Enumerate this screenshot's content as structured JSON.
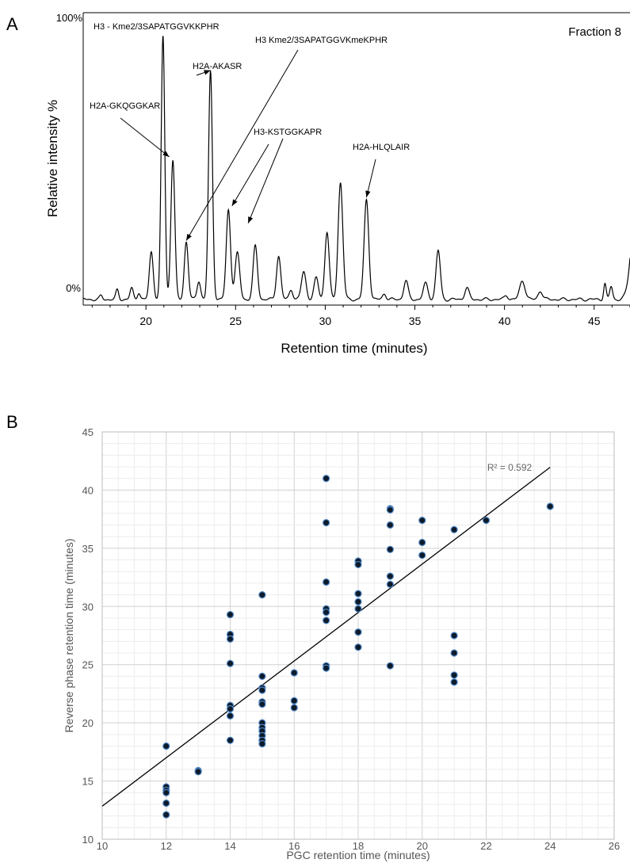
{
  "panel_a": {
    "letter": "A",
    "top_label": "100%",
    "bottom_label": "0%",
    "fraction_label": "Fraction 8",
    "xlabel": "Retention time (minutes)",
    "ylabel": "Relative intensity %"
  },
  "panel_b": {
    "letter": "B",
    "r2_label": "R² = 0.592"
  },
  "chart_data": [
    {
      "type": "line",
      "xlabel": "Retention time (minutes)",
      "ylabel": "Relative intensity %",
      "xlim": [
        16.5,
        47
      ],
      "ylim": [
        0,
        100
      ],
      "x_ticks": [
        20,
        25,
        30,
        35,
        40,
        45
      ],
      "peaks": [
        {
          "x": 17.5,
          "y": 1.2,
          "w": 0.08
        },
        {
          "x": 18.4,
          "y": 3.2,
          "w": 0.08
        },
        {
          "x": 19.2,
          "y": 3.8,
          "w": 0.09
        },
        {
          "x": 19.6,
          "y": 2.5,
          "w": 0.08
        },
        {
          "x": 20.3,
          "y": 16.5,
          "w": 0.11
        },
        {
          "x": 20.95,
          "y": 91.5,
          "w": 0.1
        },
        {
          "x": 21.5,
          "y": 48.5,
          "w": 0.11
        },
        {
          "x": 22.25,
          "y": 20,
          "w": 0.11
        },
        {
          "x": 22.95,
          "y": 6.5,
          "w": 0.1
        },
        {
          "x": 23.6,
          "y": 79,
          "w": 0.11
        },
        {
          "x": 24.6,
          "y": 31,
          "w": 0.12
        },
        {
          "x": 25.1,
          "y": 16,
          "w": 0.13
        },
        {
          "x": 26.1,
          "y": 18.5,
          "w": 0.12
        },
        {
          "x": 27.4,
          "y": 15,
          "w": 0.12
        },
        {
          "x": 28.1,
          "y": 3.5,
          "w": 0.1
        },
        {
          "x": 28.8,
          "y": 9.5,
          "w": 0.13
        },
        {
          "x": 29.5,
          "y": 7.5,
          "w": 0.12
        },
        {
          "x": 30.1,
          "y": 23.5,
          "w": 0.12
        },
        {
          "x": 30.85,
          "y": 40.5,
          "w": 0.13
        },
        {
          "x": 32.3,
          "y": 34.5,
          "w": 0.13
        },
        {
          "x": 33.3,
          "y": 2,
          "w": 0.1
        },
        {
          "x": 34.5,
          "y": 6.5,
          "w": 0.12
        },
        {
          "x": 35.6,
          "y": 5.5,
          "w": 0.13
        },
        {
          "x": 36.3,
          "y": 17,
          "w": 0.12
        },
        {
          "x": 37.9,
          "y": 4,
          "w": 0.12
        },
        {
          "x": 40.1,
          "y": 1.5,
          "w": 0.1
        },
        {
          "x": 41.0,
          "y": 6.5,
          "w": 0.15
        },
        {
          "x": 42.0,
          "y": 3,
          "w": 0.12
        },
        {
          "x": 45.6,
          "y": 5.5,
          "w": 0.07
        },
        {
          "x": 45.95,
          "y": 4.5,
          "w": 0.08
        },
        {
          "x": 47.3,
          "y": 30,
          "w": 0.25
        }
      ],
      "annotations": [
        {
          "text": "H3 - Kme2/3SAPATGGVKKPHR",
          "target_x": 22.25,
          "target_y": 21
        },
        {
          "text": "H3 Kme2/3SAPATGGVKmeKPHR",
          "target_x": 22.25,
          "target_y": 21
        },
        {
          "text": "H2A-AKASR",
          "target_x": 23.6,
          "target_y": 80
        },
        {
          "text": "H2A-GKQGGKAR",
          "target_x": 21.3,
          "target_y": 50
        },
        {
          "text": "H3-KSTGGKAPR",
          "target_x": 24.8,
          "target_y": 33
        },
        {
          "text": "",
          "target_x": 25.7,
          "target_y": 27
        },
        {
          "text": "H2A-HLQLAIR",
          "target_x": 32.3,
          "target_y": 36
        }
      ]
    },
    {
      "type": "scatter",
      "xlabel": "PGC retention time  (minutes)",
      "ylabel": "Reverse phase retention time (minutes)",
      "xlim": [
        10,
        26
      ],
      "ylim": [
        10,
        45
      ],
      "x_ticks": [
        10,
        12,
        14,
        16,
        18,
        20,
        22,
        24,
        26
      ],
      "y_ticks": [
        10,
        15,
        20,
        25,
        30,
        35,
        40,
        45
      ],
      "grid": true,
      "points": [
        [
          12,
          18.0
        ],
        [
          12,
          14.5
        ],
        [
          12,
          14.2
        ],
        [
          12,
          14.0
        ],
        [
          12,
          13.1
        ],
        [
          12,
          12.1
        ],
        [
          13,
          15.9
        ],
        [
          13,
          15.8
        ],
        [
          14,
          29.3
        ],
        [
          14,
          27.6
        ],
        [
          14,
          27.2
        ],
        [
          14,
          25.1
        ],
        [
          14,
          21.5
        ],
        [
          14,
          21.2
        ],
        [
          14,
          20.6
        ],
        [
          14,
          18.5
        ],
        [
          15,
          31.0
        ],
        [
          15,
          24.0
        ],
        [
          15,
          23.0
        ],
        [
          15,
          22.8
        ],
        [
          15,
          21.8
        ],
        [
          15,
          21.6
        ],
        [
          15,
          20.0
        ],
        [
          15,
          19.6
        ],
        [
          15,
          19.3
        ],
        [
          15,
          18.9
        ],
        [
          15,
          18.5
        ],
        [
          15,
          18.2
        ],
        [
          16,
          24.3
        ],
        [
          16,
          21.9
        ],
        [
          16,
          21.3
        ],
        [
          17,
          41.0
        ],
        [
          17,
          37.2
        ],
        [
          17,
          32.1
        ],
        [
          17,
          29.8
        ],
        [
          17,
          29.5
        ],
        [
          17,
          28.8
        ],
        [
          17,
          24.9
        ],
        [
          17,
          24.7
        ],
        [
          18,
          33.9
        ],
        [
          18,
          33.6
        ],
        [
          18,
          31.1
        ],
        [
          18,
          30.4
        ],
        [
          18,
          29.8
        ],
        [
          18,
          27.8
        ],
        [
          18,
          26.5
        ],
        [
          19,
          38.4
        ],
        [
          19,
          38.3
        ],
        [
          19,
          37.0
        ],
        [
          19,
          34.9
        ],
        [
          19,
          32.6
        ],
        [
          19,
          31.9
        ],
        [
          19,
          24.9
        ],
        [
          20,
          37.4
        ],
        [
          20,
          35.5
        ],
        [
          20,
          34.4
        ],
        [
          21,
          36.6
        ],
        [
          21,
          27.5
        ],
        [
          21,
          26.0
        ],
        [
          21,
          24.1
        ],
        [
          21,
          23.5
        ],
        [
          22,
          37.4
        ],
        [
          24,
          38.6
        ]
      ],
      "trendline": {
        "slope": 2.08,
        "intercept": -7.96,
        "x_range": [
          10,
          24
        ],
        "r2": 0.592
      }
    }
  ]
}
